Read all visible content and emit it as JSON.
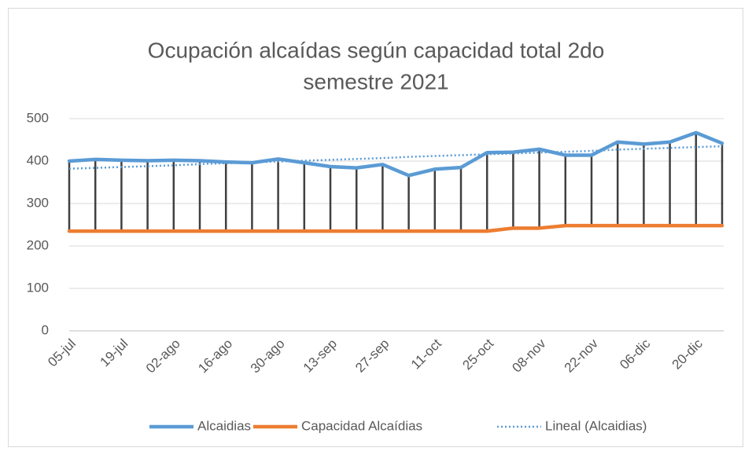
{
  "chart_data": {
    "type": "line",
    "title": [
      "Ocupación alcaídas según capacidad total 2do",
      "semestre 2021"
    ],
    "categories": [
      "05-jul",
      null,
      "19-jul",
      null,
      "02-ago",
      null,
      "16-ago",
      null,
      "30-ago",
      null,
      "13-sep",
      null,
      "27-sep",
      null,
      "11-oct",
      null,
      "25-oct",
      null,
      "08-nov",
      null,
      "22-nov",
      null,
      "06-dic",
      null,
      "20-dic",
      null
    ],
    "series": [
      {
        "name": "Alcaidias",
        "color": "#5b9bd5",
        "values": [
          400,
          404,
          402,
          401,
          402,
          401,
          398,
          396,
          405,
          396,
          387,
          384,
          392,
          366,
          381,
          385,
          420,
          421,
          428,
          414,
          414,
          445,
          440,
          445,
          467,
          442
        ]
      },
      {
        "name": "Capacidad Alcaídias",
        "color": "#ed7d31",
        "values": [
          235,
          235,
          235,
          235,
          235,
          235,
          235,
          235,
          235,
          235,
          235,
          235,
          235,
          235,
          235,
          235,
          235,
          242,
          242,
          248,
          248,
          248,
          248,
          248,
          248,
          248
        ]
      },
      {
        "name": "Lineal (Alcaidias)",
        "color": "#5b9bd5",
        "dashed": true,
        "values": [
          382,
          384,
          386,
          388,
          390,
          393,
          395,
          397,
          399,
          401,
          403,
          405,
          407,
          410,
          412,
          414,
          416,
          418,
          420,
          422,
          424,
          427,
          429,
          431,
          433,
          435
        ]
      }
    ],
    "high_low_lines": true,
    "ylim": [
      0,
      500
    ],
    "yticks": [
      0,
      100,
      200,
      300,
      400,
      500
    ],
    "grid": true,
    "legend": "bottom"
  }
}
